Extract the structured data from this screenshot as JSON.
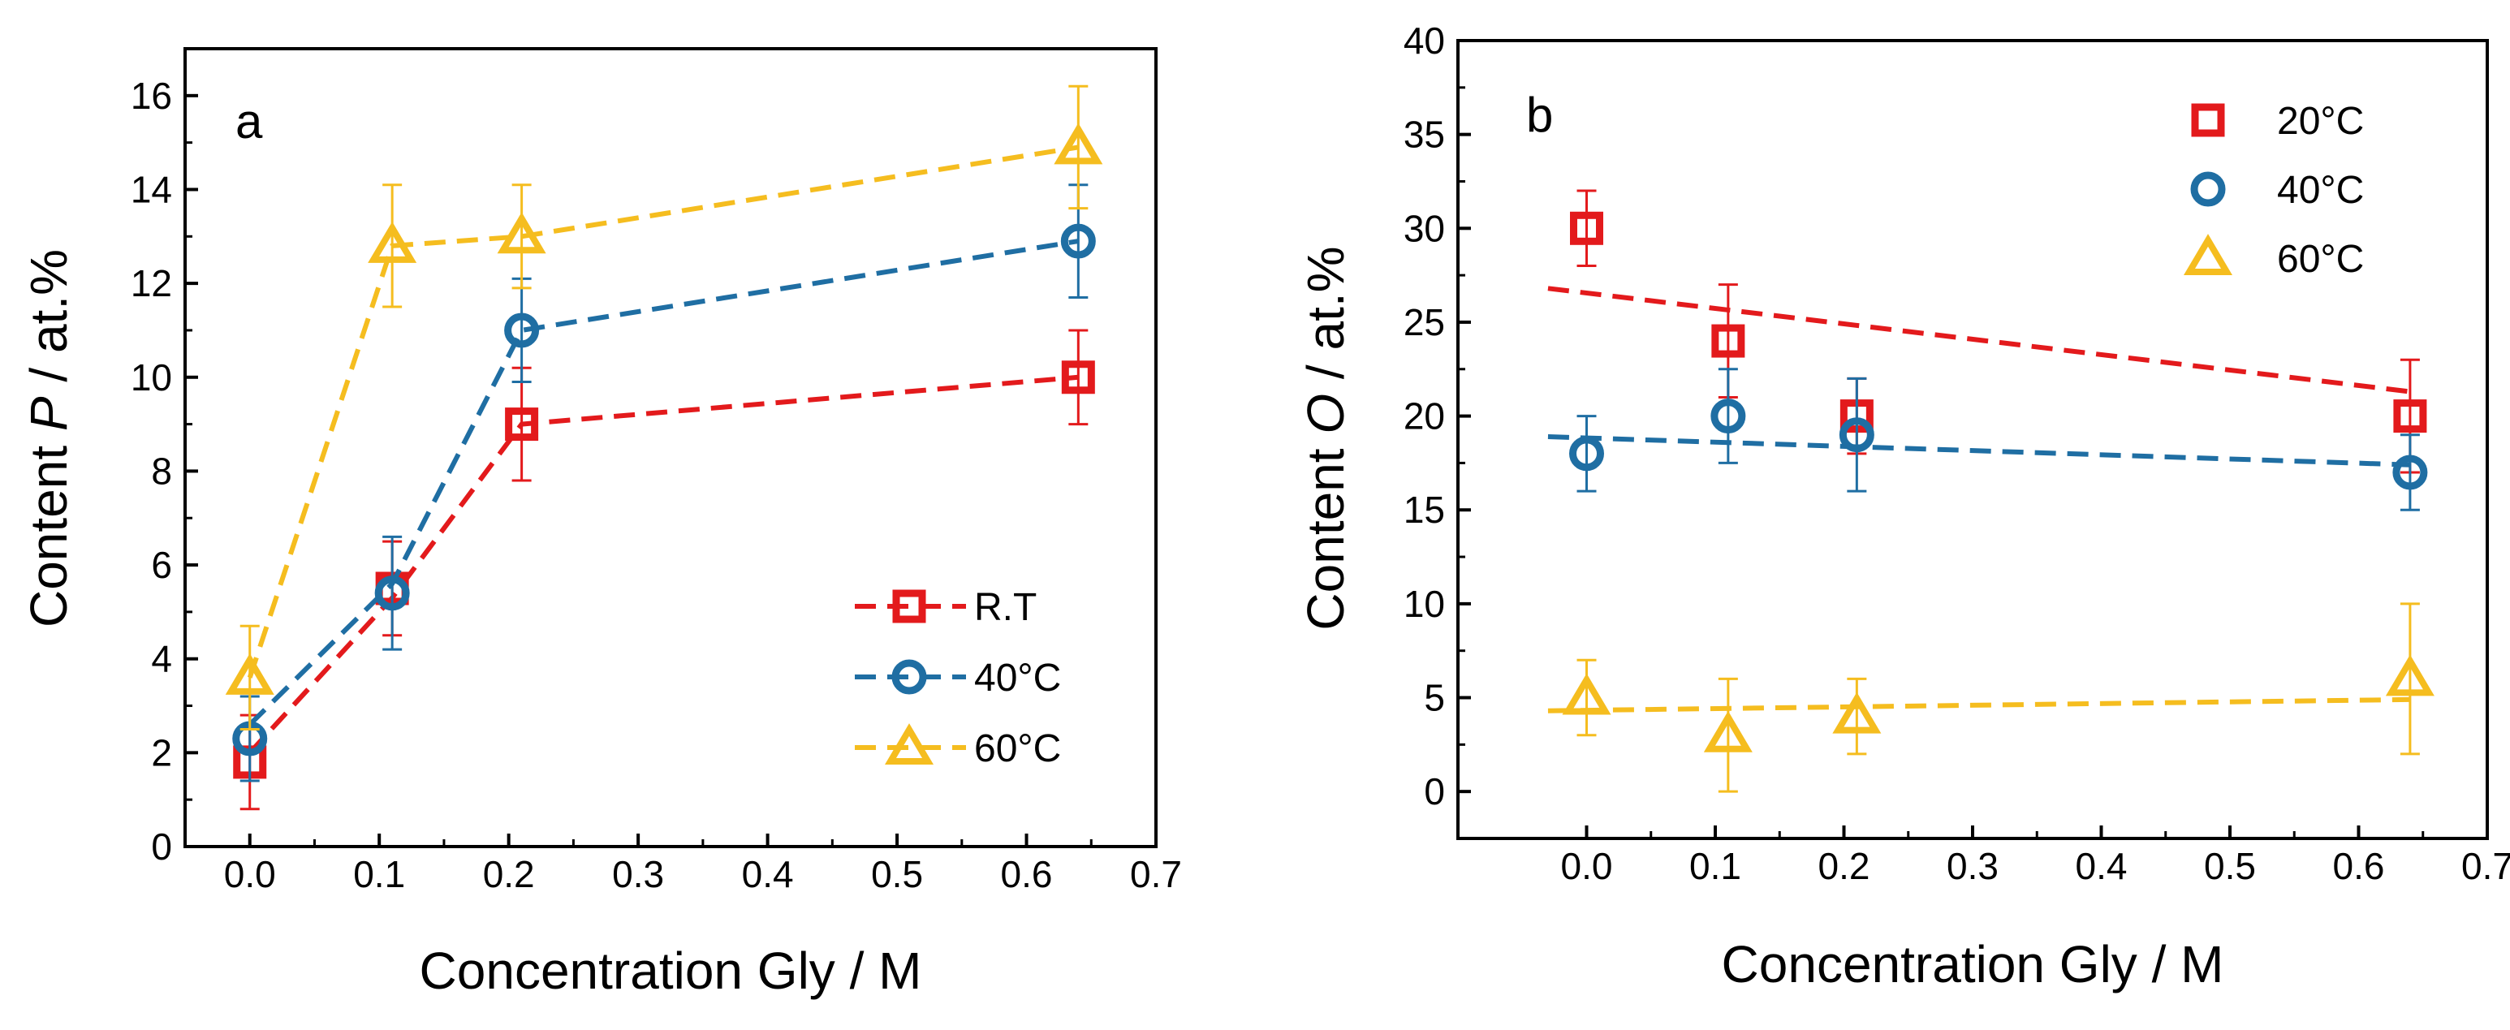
{
  "colors": {
    "red": "#e31a1c",
    "blue": "#1f6ea3",
    "yellow": "#f5bd1f"
  },
  "chart_data": [
    {
      "type": "line",
      "panel": "a",
      "title": "",
      "xlabel": "Concentration Gly / M",
      "ylabel_prefix": "Content ",
      "ylabel_italic": "P",
      "ylabel_suffix": " / at.%",
      "xlim": [
        -0.05,
        0.7
      ],
      "ylim": [
        0,
        17
      ],
      "xticks": [
        0.0,
        0.1,
        0.2,
        0.3,
        0.4,
        0.5,
        0.6,
        0.7
      ],
      "xtick_labels": [
        "0.0",
        "0.1",
        "0.2",
        "0.3",
        "0.4",
        "0.5",
        "0.6",
        "0.7"
      ],
      "yticks": [
        0,
        2,
        4,
        6,
        8,
        10,
        12,
        14,
        16
      ],
      "ytick_labels": [
        "0",
        "2",
        "4",
        "6",
        "8",
        "10",
        "12",
        "14",
        "16"
      ],
      "legend_position": "bottom-right",
      "series": [
        {
          "name": "R.T",
          "color_key": "red",
          "marker": "square",
          "x": [
            0.0,
            0.11,
            0.21,
            0.64
          ],
          "y": [
            1.8,
            5.5,
            9.0,
            10.0
          ],
          "err": [
            1.0,
            1.0,
            1.2,
            1.0
          ],
          "fit": {
            "x": [
              0.0,
              0.11,
              0.21,
              0.64
            ],
            "y": [
              2.0,
              5.3,
              9.0,
              10.0
            ]
          }
        },
        {
          "name": "40°C",
          "color_key": "blue",
          "marker": "circle",
          "x": [
            0.0,
            0.11,
            0.21,
            0.64
          ],
          "y": [
            2.3,
            5.4,
            11.0,
            12.9
          ],
          "err": [
            0.9,
            1.2,
            1.1,
            1.2
          ],
          "fit": {
            "x": [
              0.0,
              0.11,
              0.21,
              0.64
            ],
            "y": [
              2.6,
              5.6,
              11.0,
              12.9
            ]
          }
        },
        {
          "name": "60°C",
          "color_key": "yellow",
          "marker": "triangle",
          "x": [
            0.0,
            0.11,
            0.21,
            0.64
          ],
          "y": [
            3.6,
            12.8,
            13.0,
            14.9
          ],
          "err": [
            1.1,
            1.3,
            1.1,
            1.3
          ],
          "fit": {
            "x": [
              0.0,
              0.11,
              0.21,
              0.64
            ],
            "y": [
              3.6,
              12.8,
              13.0,
              14.9
            ]
          }
        }
      ]
    },
    {
      "type": "scatter",
      "panel": "b",
      "title": "",
      "xlabel": "Concentration Gly / M",
      "ylabel_prefix": "Content ",
      "ylabel_italic": "O",
      "ylabel_suffix": " / at.%",
      "xlim": [
        -0.1,
        0.7
      ],
      "ylim": [
        -2.5,
        40
      ],
      "xticks": [
        0.0,
        0.1,
        0.2,
        0.3,
        0.4,
        0.5,
        0.6,
        0.7
      ],
      "xtick_labels": [
        "0.0",
        "0.1",
        "0.2",
        "0.3",
        "0.4",
        "0.5",
        "0.6",
        "0.7"
      ],
      "yticks": [
        0,
        5,
        10,
        15,
        20,
        25,
        30,
        35,
        40
      ],
      "ytick_labels": [
        "0",
        "5",
        "10",
        "15",
        "20",
        "25",
        "30",
        "35",
        "40"
      ],
      "legend_position": "top-right",
      "series": [
        {
          "name": "20°C",
          "color_key": "red",
          "marker": "square",
          "x": [
            0.0,
            0.11,
            0.21,
            0.64
          ],
          "y": [
            30.0,
            24.0,
            20.0,
            20.0
          ],
          "err": [
            2.0,
            3.0,
            2.0,
            3.0
          ],
          "fit": {
            "x": [
              -0.03,
              0.64
            ],
            "y": [
              26.8,
              21.3
            ]
          }
        },
        {
          "name": "40°C",
          "color_key": "blue",
          "marker": "circle",
          "x": [
            0.0,
            0.11,
            0.21,
            0.64
          ],
          "y": [
            18.0,
            20.0,
            19.0,
            17.0
          ],
          "err": [
            2.0,
            2.5,
            3.0,
            2.0
          ],
          "fit": {
            "x": [
              -0.03,
              0.64
            ],
            "y": [
              18.9,
              17.4
            ]
          }
        },
        {
          "name": "60°C",
          "color_key": "yellow",
          "marker": "triangle",
          "x": [
            0.0,
            0.11,
            0.21,
            0.64
          ],
          "y": [
            5.0,
            3.0,
            4.0,
            6.0
          ],
          "err": [
            2.0,
            3.0,
            2.0,
            4.0
          ],
          "fit": {
            "x": [
              -0.03,
              0.64
            ],
            "y": [
              4.3,
              4.9
            ]
          }
        }
      ]
    }
  ]
}
